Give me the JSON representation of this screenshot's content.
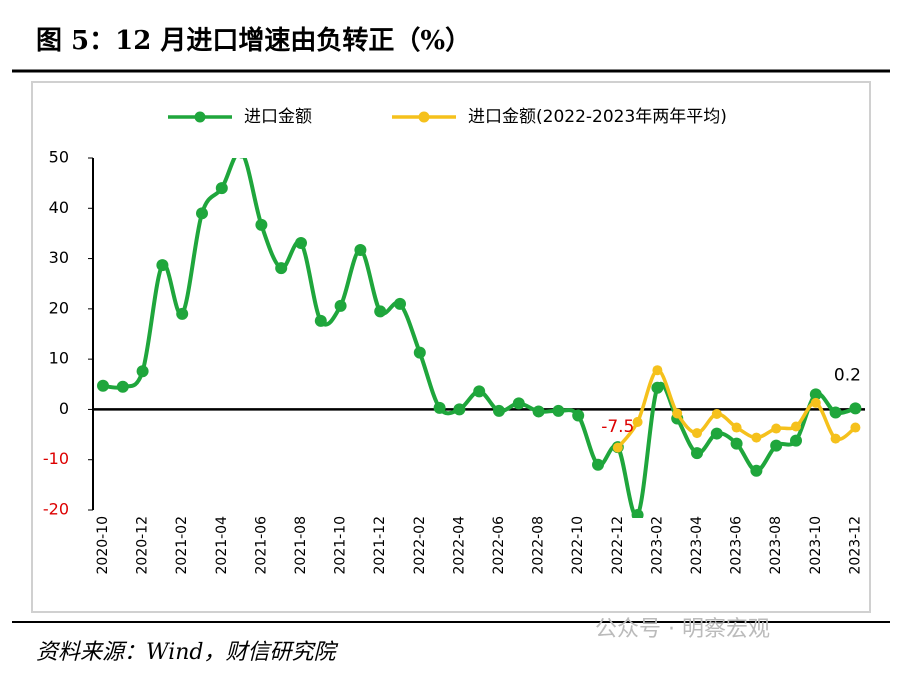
{
  "chart_data": {
    "type": "line",
    "title": "图 5：12 月进口增速由负转正（%）",
    "categories": [
      "2020-10",
      null,
      "2020-12",
      null,
      "2021-02",
      null,
      "2021-04",
      null,
      "2021-06",
      null,
      "2021-08",
      null,
      "2021-10",
      null,
      "2021-12",
      null,
      "2022-02",
      null,
      "2022-04",
      null,
      "2022-06",
      null,
      "2022-08",
      null,
      "2022-10",
      null,
      "2022-12",
      null,
      "2023-02",
      null,
      "2023-04",
      null,
      "2023-06",
      null,
      "2023-08",
      null,
      "2023-10",
      null,
      "2023-12"
    ],
    "series": [
      {
        "name": "进口金额",
        "color": "#1fa63c",
        "values": [
          4.7,
          4.5,
          7.6,
          28.7,
          19,
          39,
          44,
          51.1,
          36.7,
          28.1,
          33.1,
          17.6,
          20.6,
          31.7,
          19.5,
          21,
          11.3,
          0.3,
          0,
          3.6,
          -0.3,
          1.2,
          -0.4,
          -0.3,
          -1.2,
          -11,
          -7.5,
          -21,
          4.3,
          -1.8,
          -8.7,
          -4.8,
          -6.8,
          -12.2,
          -7.2,
          -6.2,
          3,
          -0.6,
          0.2
        ]
      },
      {
        "name": "进口金额(2022-2023年两年平均)",
        "color": "#f5c11c",
        "values": [
          null,
          null,
          null,
          null,
          null,
          null,
          null,
          null,
          null,
          null,
          null,
          null,
          null,
          null,
          null,
          null,
          null,
          null,
          null,
          null,
          null,
          null,
          null,
          null,
          null,
          null,
          -7.6,
          -2.5,
          7.8,
          -0.8,
          -4.7,
          -0.9,
          -3.6,
          -5.6,
          -3.8,
          -3.4,
          1.3,
          -5.8,
          -3.6
        ]
      }
    ],
    "ylim": [
      -20,
      50
    ],
    "yticks": [
      -20,
      -10,
      0,
      10,
      20,
      30,
      40,
      50
    ],
    "annotations": [
      {
        "text": "-7.5",
        "index": 26,
        "value": -7.5
      },
      {
        "text": "0.2",
        "index": 38,
        "value": 0.2
      }
    ],
    "source": "资料来源：Wind，财信研究院",
    "watermark": "公众号 · 明察宏观"
  }
}
